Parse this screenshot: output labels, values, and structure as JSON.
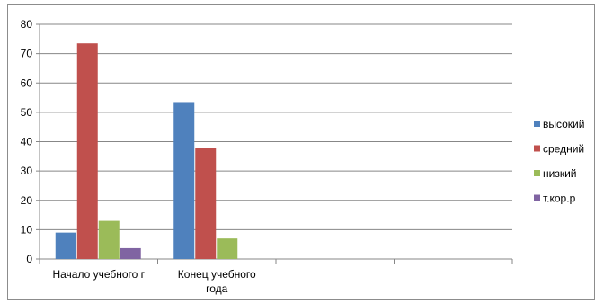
{
  "colors": {
    "series": [
      "#4F81BD",
      "#C0504D",
      "#9BBB59",
      "#8064A2"
    ],
    "grid": "#878787",
    "axis": "#878787"
  },
  "chart_data": {
    "type": "bar",
    "categories": [
      "Начало учебного г",
      "Конец учебного года",
      "",
      ""
    ],
    "category_lines": [
      [
        "Начало учебного г"
      ],
      [
        "Конец учебного",
        "года"
      ],
      [],
      []
    ],
    "series": [
      {
        "name": "высокий",
        "values": [
          9,
          53.5,
          null,
          null
        ]
      },
      {
        "name": "средний",
        "values": [
          73.5,
          38,
          null,
          null
        ]
      },
      {
        "name": "низкий",
        "values": [
          13,
          7,
          null,
          null
        ]
      },
      {
        "name": "т.кор.р",
        "values": [
          3.7,
          null,
          null,
          null
        ]
      }
    ],
    "yticks": [
      "0",
      "10",
      "20",
      "30",
      "40",
      "50",
      "60",
      "70",
      "80"
    ],
    "ylim": [
      0,
      80
    ],
    "grid": true,
    "legend_position": "right"
  }
}
